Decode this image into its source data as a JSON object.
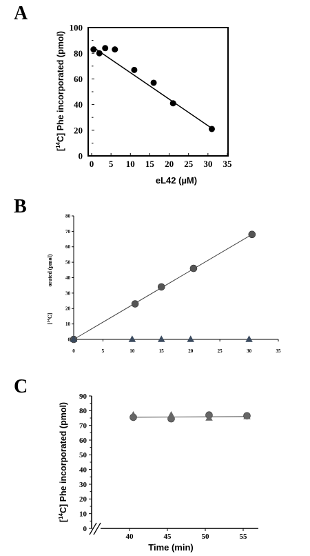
{
  "chart_data": [
    {
      "panel": "A",
      "type": "scatter",
      "xlabel": "eL42 (µM)",
      "ylabel": "[14C] Phe incorporated (pmol)",
      "xlim": [
        0,
        35
      ],
      "ylim": [
        0,
        100
      ],
      "xticks": [
        0,
        5,
        10,
        15,
        20,
        25,
        30,
        35
      ],
      "yticks": [
        0,
        20,
        40,
        60,
        80,
        100
      ],
      "series": [
        {
          "points": [
            [
              0.5,
              83
            ],
            [
              2,
              80
            ],
            [
              3.5,
              84
            ],
            [
              6,
              83
            ],
            [
              11,
              67
            ],
            [
              16,
              57
            ],
            [
              21,
              41
            ],
            [
              31,
              21
            ]
          ],
          "marker": "circle",
          "color": "#000000"
        }
      ],
      "trendline": [
        [
          0.5,
          84.5
        ],
        [
          31,
          21.5
        ]
      ]
    },
    {
      "panel": "B",
      "type": "scatter",
      "xlabel": "",
      "ylabel": "[14C] Phe incorporated (pmol)",
      "ylabel_visible_fragments": [
        "orated (pmol)",
        "[14C]"
      ],
      "xlim": [
        0,
        35
      ],
      "ylim": [
        0,
        80
      ],
      "xticks": [
        0,
        5,
        10,
        15,
        20,
        25,
        30,
        35
      ],
      "yticks": [
        0,
        10,
        20,
        30,
        40,
        50,
        60,
        70,
        80
      ],
      "series": [
        {
          "points": [
            [
              0,
              0
            ],
            [
              10.5,
              23
            ],
            [
              15,
              34
            ],
            [
              20.5,
              46
            ],
            [
              30.5,
              68
            ]
          ],
          "marker": "circle",
          "color": "#555555"
        },
        {
          "points": [
            [
              0,
              0
            ],
            [
              10,
              0
            ],
            [
              15,
              0
            ],
            [
              20,
              0
            ],
            [
              30,
              0
            ]
          ],
          "marker": "triangle",
          "color": "#3a4a5e"
        }
      ],
      "trendline": [
        [
          0,
          0
        ],
        [
          30.5,
          68
        ]
      ]
    },
    {
      "panel": "C",
      "type": "scatter",
      "xlabel": "Time (min)",
      "ylabel": "[14C] Phe incorporated (pmol)",
      "axis_break": true,
      "xlim": [
        35,
        57
      ],
      "ylim": [
        0,
        90
      ],
      "xticks": [
        40,
        45,
        50,
        55
      ],
      "yticks": [
        0,
        10,
        20,
        30,
        40,
        50,
        60,
        70,
        80,
        90
      ],
      "series": [
        {
          "points": [
            [
              40.5,
              75.5
            ],
            [
              45.5,
              74.5
            ],
            [
              50.5,
              77
            ],
            [
              55.5,
              76.5
            ]
          ],
          "marker": "circle",
          "color": "#666666"
        },
        {
          "points": [
            [
              40.5,
              77
            ],
            [
              45.5,
              77
            ],
            [
              50.5,
              75
            ],
            [
              55.5,
              76
            ]
          ],
          "marker": "triangle",
          "color": "#666666"
        }
      ],
      "trendline": [
        [
          40.5,
          75.5
        ],
        [
          55.5,
          76
        ]
      ]
    }
  ],
  "labels": {
    "panelA": "A",
    "panelB": "B",
    "panelC": "C",
    "a_xlabel": "eL42 (µM)",
    "a_ylabel": "[14C] Phe incorporated (pmol)",
    "a_ylabel_pre": "[",
    "a_ylabel_sup": "14",
    "a_ylabel_post": "C] Phe incorporated (pmol)",
    "b_ylabel_frag1": "orated (pmol)",
    "b_ylabel_frag2_pre": "[",
    "b_ylabel_frag2_sup": "14",
    "b_ylabel_frag2_post": "C]",
    "c_xlabel": "Time (min)",
    "c_ylabel_pre": "[",
    "c_ylabel_sup": "14",
    "c_ylabel_post": "C] Phe incorporated (pmol)"
  }
}
